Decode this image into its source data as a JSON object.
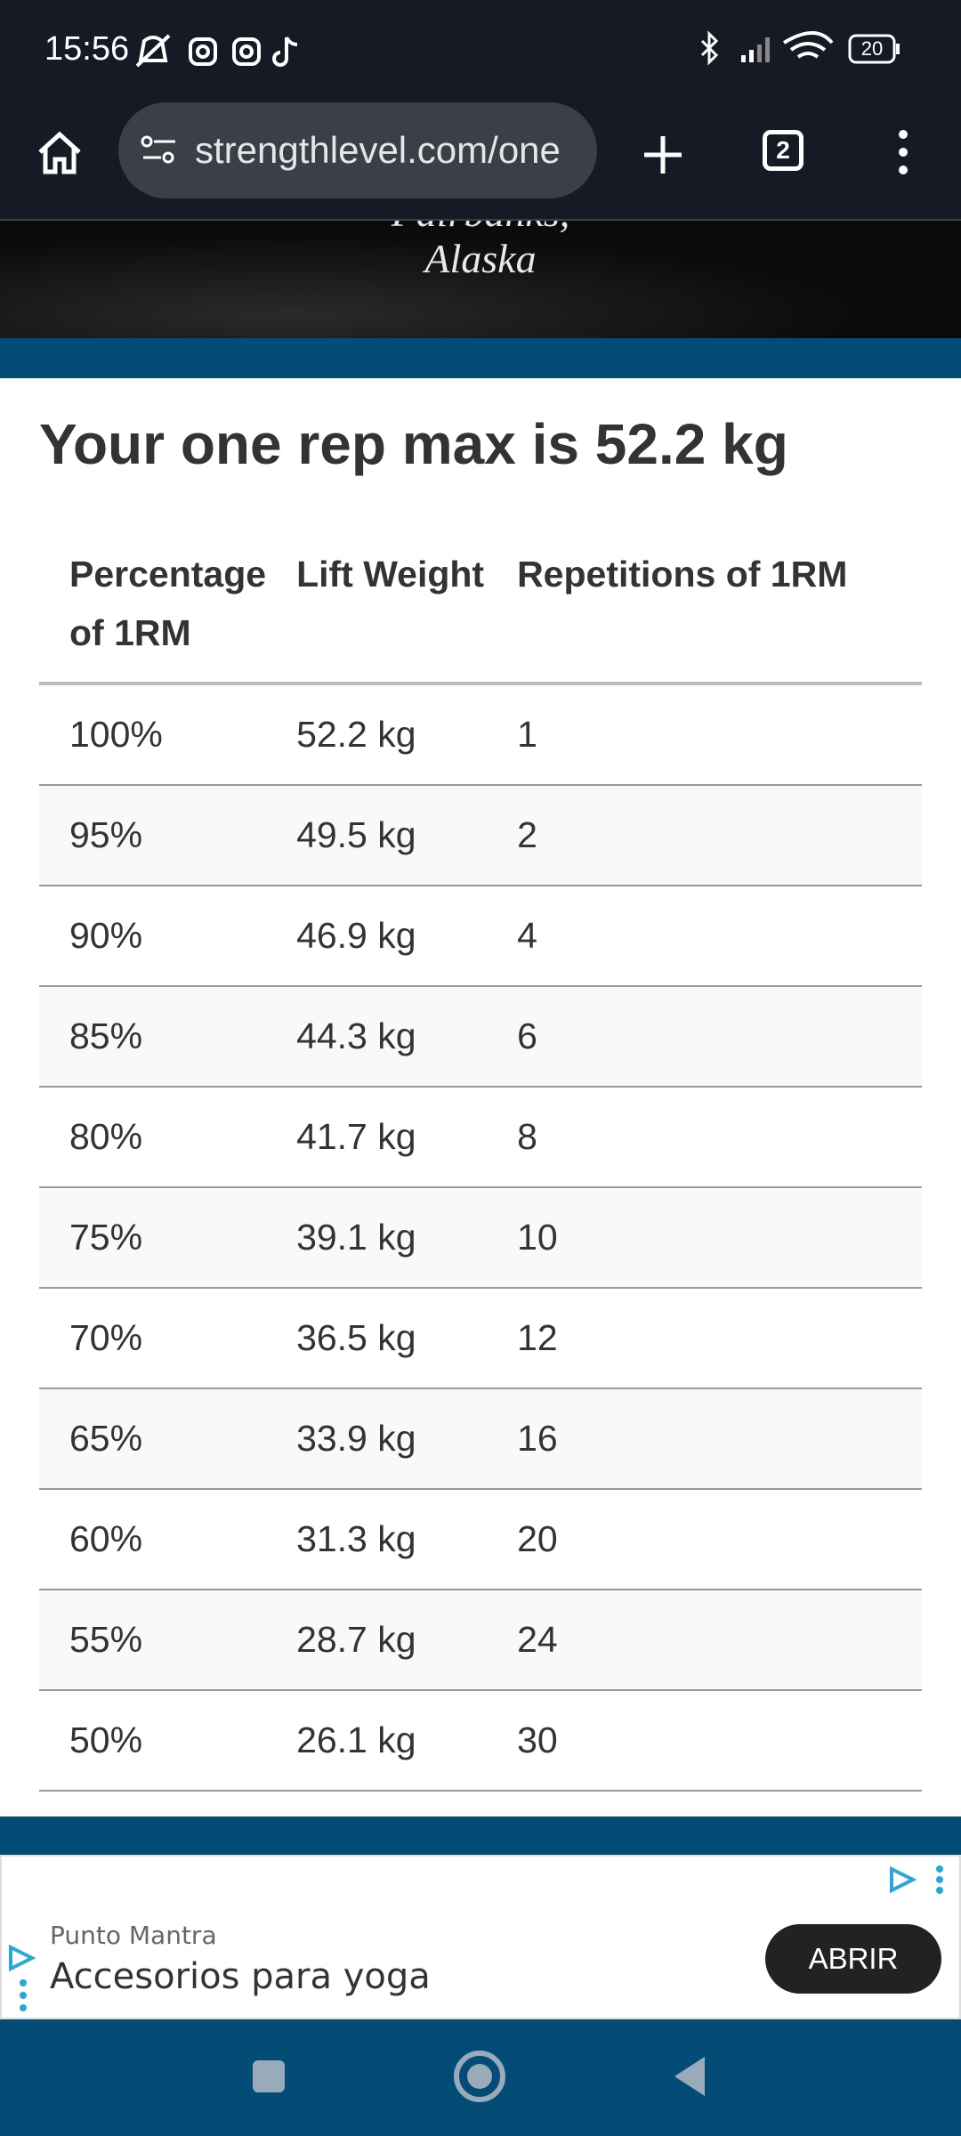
{
  "status_bar": {
    "time": "15:56",
    "battery": "20"
  },
  "browser": {
    "url": "strengthlevel.com/one",
    "tab_count": "2"
  },
  "hero": {
    "line1": "Fairbanks,",
    "line2": "Alaska"
  },
  "result": {
    "title": "Your one rep max is 52.2 kg"
  },
  "table": {
    "headers": [
      "Percentage of 1RM",
      "Lift Weight",
      "Repetitions of 1RM"
    ],
    "rows": [
      [
        "100%",
        "52.2 kg",
        "1"
      ],
      [
        "95%",
        "49.5 kg",
        "2"
      ],
      [
        "90%",
        "46.9 kg",
        "4"
      ],
      [
        "85%",
        "44.3 kg",
        "6"
      ],
      [
        "80%",
        "41.7 kg",
        "8"
      ],
      [
        "75%",
        "39.1 kg",
        "10"
      ],
      [
        "70%",
        "36.5 kg",
        "12"
      ],
      [
        "65%",
        "33.9 kg",
        "16"
      ],
      [
        "60%",
        "31.3 kg",
        "20"
      ],
      [
        "55%",
        "28.7 kg",
        "24"
      ],
      [
        "50%",
        "26.1 kg",
        "30"
      ]
    ]
  },
  "ad": {
    "advertiser": "Punto Mantra",
    "headline": "Accesorios para yoga",
    "button": "ABRIR"
  }
}
